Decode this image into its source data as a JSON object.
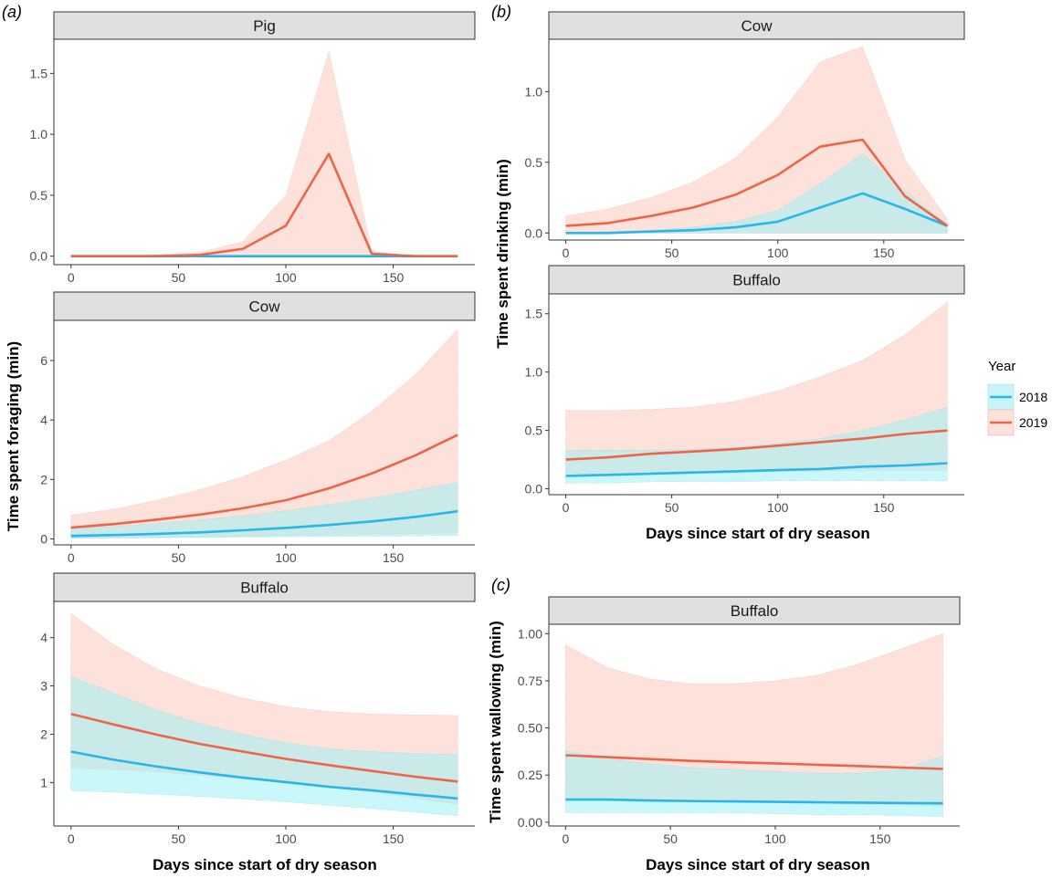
{
  "chart_data": [
    {
      "type": "line",
      "panel_label": "(a)",
      "facet": "Pig",
      "ylabel": "Time spent foraging (min)",
      "xlabel": "",
      "xlim": [
        -8,
        188
      ],
      "ylim": [
        -0.07,
        1.78
      ],
      "x_ticks": [
        0,
        50,
        100,
        150
      ],
      "x_tick_labels": [
        "0",
        "50",
        "100",
        "150"
      ],
      "y_ticks": [
        0,
        0.5,
        1.0,
        1.5
      ],
      "y_tick_labels": [
        "0.0",
        "0.5",
        "1.0",
        "1.5"
      ],
      "series": [
        {
          "name": "2018",
          "x": [
            0,
            20,
            40,
            60,
            80,
            100,
            120,
            140,
            160,
            180
          ],
          "y": [
            0,
            0,
            0,
            0,
            0,
            0,
            0,
            0,
            0,
            0
          ],
          "lower": [
            0,
            0,
            0,
            0,
            0,
            0,
            0,
            0,
            0,
            0
          ],
          "upper": [
            0,
            0,
            0,
            0,
            0,
            0,
            0,
            0,
            0,
            0
          ]
        },
        {
          "name": "2019",
          "x": [
            0,
            20,
            40,
            60,
            80,
            100,
            120,
            140,
            160,
            180
          ],
          "y": [
            0,
            0,
            0,
            0.01,
            0.06,
            0.25,
            0.84,
            0.02,
            0,
            0
          ],
          "lower": [
            0,
            0,
            0,
            0,
            0,
            0,
            0,
            0,
            0,
            0
          ],
          "upper": [
            0,
            0,
            0.01,
            0.03,
            0.12,
            0.5,
            1.68,
            0.04,
            0,
            0
          ]
        }
      ]
    },
    {
      "type": "line",
      "panel_label": "",
      "facet": "Cow",
      "ylabel": "Time spent foraging (min)",
      "xlabel": "",
      "xlim": [
        -8,
        188
      ],
      "ylim": [
        -0.2,
        7.35
      ],
      "x_ticks": [
        0,
        50,
        100,
        150
      ],
      "x_tick_labels": [
        "0",
        "50",
        "100",
        "150"
      ],
      "y_ticks": [
        0,
        2,
        4,
        6
      ],
      "y_tick_labels": [
        "0",
        "2",
        "4",
        "6"
      ],
      "series": [
        {
          "name": "2018",
          "x": [
            0,
            20,
            40,
            60,
            80,
            100,
            120,
            140,
            160,
            180
          ],
          "y": [
            0.1,
            0.13,
            0.17,
            0.22,
            0.29,
            0.37,
            0.47,
            0.59,
            0.74,
            0.93
          ],
          "lower": [
            0.02,
            0.03,
            0.04,
            0.05,
            0.06,
            0.07,
            0.08,
            0.09,
            0.1,
            0.12
          ],
          "upper": [
            0.35,
            0.42,
            0.52,
            0.64,
            0.78,
            0.95,
            1.15,
            1.38,
            1.63,
            1.9
          ]
        },
        {
          "name": "2019",
          "x": [
            0,
            20,
            40,
            60,
            80,
            100,
            120,
            140,
            160,
            180
          ],
          "y": [
            0.38,
            0.5,
            0.65,
            0.82,
            1.03,
            1.3,
            1.7,
            2.2,
            2.8,
            3.5
          ],
          "lower": [
            0.02,
            0.03,
            0.05,
            0.07,
            0.09,
            0.11,
            0.13,
            0.15,
            0.17,
            0.2
          ],
          "upper": [
            0.8,
            1.0,
            1.3,
            1.65,
            2.1,
            2.65,
            3.3,
            4.3,
            5.5,
            7.05
          ]
        }
      ]
    },
    {
      "type": "line",
      "panel_label": "",
      "facet": "Buffalo",
      "ylabel": "Time spent foraging (min)",
      "xlabel": "Days since start of dry season",
      "xlim": [
        -8,
        188
      ],
      "ylim": [
        0.1,
        4.75
      ],
      "x_ticks": [
        0,
        50,
        100,
        150
      ],
      "x_tick_labels": [
        "0",
        "50",
        "100",
        "150"
      ],
      "y_ticks": [
        1,
        2,
        3,
        4
      ],
      "y_tick_labels": [
        "1",
        "2",
        "3",
        "4"
      ],
      "series": [
        {
          "name": "2018",
          "x": [
            0,
            20,
            40,
            60,
            80,
            100,
            120,
            140,
            160,
            180
          ],
          "y": [
            1.64,
            1.47,
            1.33,
            1.21,
            1.1,
            1.01,
            0.91,
            0.84,
            0.75,
            0.67
          ],
          "lower": [
            0.83,
            0.8,
            0.76,
            0.71,
            0.66,
            0.6,
            0.53,
            0.46,
            0.39,
            0.31
          ],
          "upper": [
            3.2,
            2.85,
            2.5,
            2.22,
            2.0,
            1.82,
            1.7,
            1.64,
            1.6,
            1.58
          ]
        },
        {
          "name": "2019",
          "x": [
            0,
            20,
            40,
            60,
            80,
            100,
            120,
            140,
            160,
            180
          ],
          "y": [
            2.42,
            2.2,
            1.99,
            1.8,
            1.64,
            1.49,
            1.36,
            1.24,
            1.12,
            1.02
          ],
          "lower": [
            1.3,
            1.27,
            1.22,
            1.15,
            1.08,
            1.0,
            0.9,
            0.8,
            0.68,
            0.55
          ],
          "upper": [
            4.5,
            3.85,
            3.35,
            3.0,
            2.75,
            2.57,
            2.47,
            2.42,
            2.4,
            2.39
          ]
        }
      ]
    },
    {
      "type": "line",
      "panel_label": "(b)",
      "facet": "Cow",
      "ylabel": "Time spent drinking (min)",
      "xlabel": "",
      "xlim": [
        -8,
        188
      ],
      "ylim": [
        -0.05,
        1.37
      ],
      "x_ticks": [
        0,
        50,
        100,
        150
      ],
      "x_tick_labels": [
        "0",
        "50",
        "100",
        "150"
      ],
      "y_ticks": [
        0,
        0.5,
        1.0
      ],
      "y_tick_labels": [
        "0.0",
        "0.5",
        "1.0"
      ],
      "series": [
        {
          "name": "2018",
          "x": [
            0,
            20,
            40,
            60,
            80,
            100,
            120,
            140,
            160,
            180
          ],
          "y": [
            0,
            0,
            0.01,
            0.02,
            0.04,
            0.08,
            0.18,
            0.28,
            0.17,
            0.05
          ],
          "lower": [
            0,
            0,
            0,
            0,
            0,
            0,
            0,
            0,
            0,
            0
          ],
          "upper": [
            0,
            0.01,
            0.02,
            0.04,
            0.08,
            0.16,
            0.35,
            0.56,
            0.3,
            0.06
          ]
        },
        {
          "name": "2019",
          "x": [
            0,
            20,
            40,
            60,
            80,
            100,
            120,
            140,
            160,
            180
          ],
          "y": [
            0.05,
            0.07,
            0.12,
            0.18,
            0.27,
            0.41,
            0.61,
            0.66,
            0.26,
            0.05
          ],
          "lower": [
            0,
            0,
            0,
            0,
            0,
            0,
            0,
            0,
            0,
            0
          ],
          "upper": [
            0.12,
            0.17,
            0.25,
            0.36,
            0.53,
            0.82,
            1.21,
            1.32,
            0.52,
            0.1
          ]
        }
      ]
    },
    {
      "type": "line",
      "panel_label": "",
      "facet": "Buffalo",
      "ylabel": "Time spent drinking (min)",
      "xlabel": "Days since start of dry season",
      "xlim": [
        -8,
        188
      ],
      "ylim": [
        -0.05,
        1.67
      ],
      "x_ticks": [
        0,
        50,
        100,
        150
      ],
      "x_tick_labels": [
        "0",
        "50",
        "100",
        "150"
      ],
      "y_ticks": [
        0,
        0.5,
        1.0,
        1.5
      ],
      "y_tick_labels": [
        "0.0",
        "0.5",
        "1.0",
        "1.5"
      ],
      "series": [
        {
          "name": "2018",
          "x": [
            0,
            20,
            40,
            60,
            80,
            100,
            120,
            140,
            160,
            180
          ],
          "y": [
            0.11,
            0.12,
            0.13,
            0.14,
            0.15,
            0.16,
            0.17,
            0.19,
            0.2,
            0.22
          ],
          "lower": [
            0.05,
            0.05,
            0.06,
            0.06,
            0.06,
            0.07,
            0.07,
            0.07,
            0.07,
            0.07
          ],
          "upper": [
            0.33,
            0.33,
            0.33,
            0.34,
            0.36,
            0.39,
            0.43,
            0.5,
            0.59,
            0.7
          ]
        },
        {
          "name": "2019",
          "x": [
            0,
            20,
            40,
            60,
            80,
            100,
            120,
            140,
            160,
            180
          ],
          "y": [
            0.25,
            0.27,
            0.3,
            0.32,
            0.34,
            0.37,
            0.4,
            0.43,
            0.47,
            0.5
          ],
          "lower": [
            0.1,
            0.11,
            0.12,
            0.13,
            0.14,
            0.15,
            0.15,
            0.16,
            0.16,
            0.16
          ],
          "upper": [
            0.67,
            0.67,
            0.68,
            0.7,
            0.75,
            0.84,
            0.96,
            1.1,
            1.32,
            1.6
          ]
        }
      ]
    },
    {
      "type": "line",
      "panel_label": "(c)",
      "facet": "Buffalo",
      "ylabel": "Time spent wallowing (min)",
      "xlabel": "Days since start of dry season",
      "xlim": [
        -8,
        188
      ],
      "ylim": [
        -0.02,
        1.05
      ],
      "x_ticks": [
        0,
        50,
        100,
        150
      ],
      "x_tick_labels": [
        "0",
        "50",
        "100",
        "150"
      ],
      "y_ticks": [
        0,
        0.25,
        0.5,
        0.75,
        1.0
      ],
      "y_tick_labels": [
        "0.00",
        "0.25",
        "0.50",
        "0.75",
        "1.00"
      ],
      "series": [
        {
          "name": "2018",
          "x": [
            0,
            20,
            40,
            60,
            80,
            100,
            120,
            140,
            160,
            180
          ],
          "y": [
            0.12,
            0.12,
            0.115,
            0.112,
            0.11,
            0.108,
            0.106,
            0.104,
            0.102,
            0.1
          ],
          "lower": [
            0.05,
            0.05,
            0.05,
            0.05,
            0.05,
            0.045,
            0.04,
            0.04,
            0.035,
            0.03
          ],
          "upper": [
            0.38,
            0.34,
            0.31,
            0.29,
            0.28,
            0.27,
            0.26,
            0.26,
            0.28,
            0.35
          ]
        },
        {
          "name": "2019",
          "x": [
            0,
            20,
            40,
            60,
            80,
            100,
            120,
            140,
            160,
            180
          ],
          "y": [
            0.355,
            0.345,
            0.335,
            0.325,
            0.318,
            0.312,
            0.305,
            0.298,
            0.29,
            0.283
          ],
          "lower": [
            0.12,
            0.12,
            0.115,
            0.11,
            0.11,
            0.105,
            0.1,
            0.095,
            0.09,
            0.085
          ],
          "upper": [
            0.94,
            0.82,
            0.76,
            0.735,
            0.735,
            0.75,
            0.78,
            0.84,
            0.92,
            1.0
          ]
        }
      ]
    }
  ],
  "legend": {
    "title": "Year",
    "items": [
      {
        "label": "2018",
        "line_color": "#29b6e8",
        "fill_color": "#c8f4f8"
      },
      {
        "label": "2019",
        "line_color": "#ee6448",
        "fill_color": "#fde2dc"
      }
    ]
  },
  "colors": {
    "line_2018": "#29b6e8",
    "fill_2018": "#9ff0f4",
    "line_2019": "#ee6448",
    "fill_2019": "#fbc5b8",
    "strip_bg": "#e0e0e0",
    "axis": "#333333"
  }
}
